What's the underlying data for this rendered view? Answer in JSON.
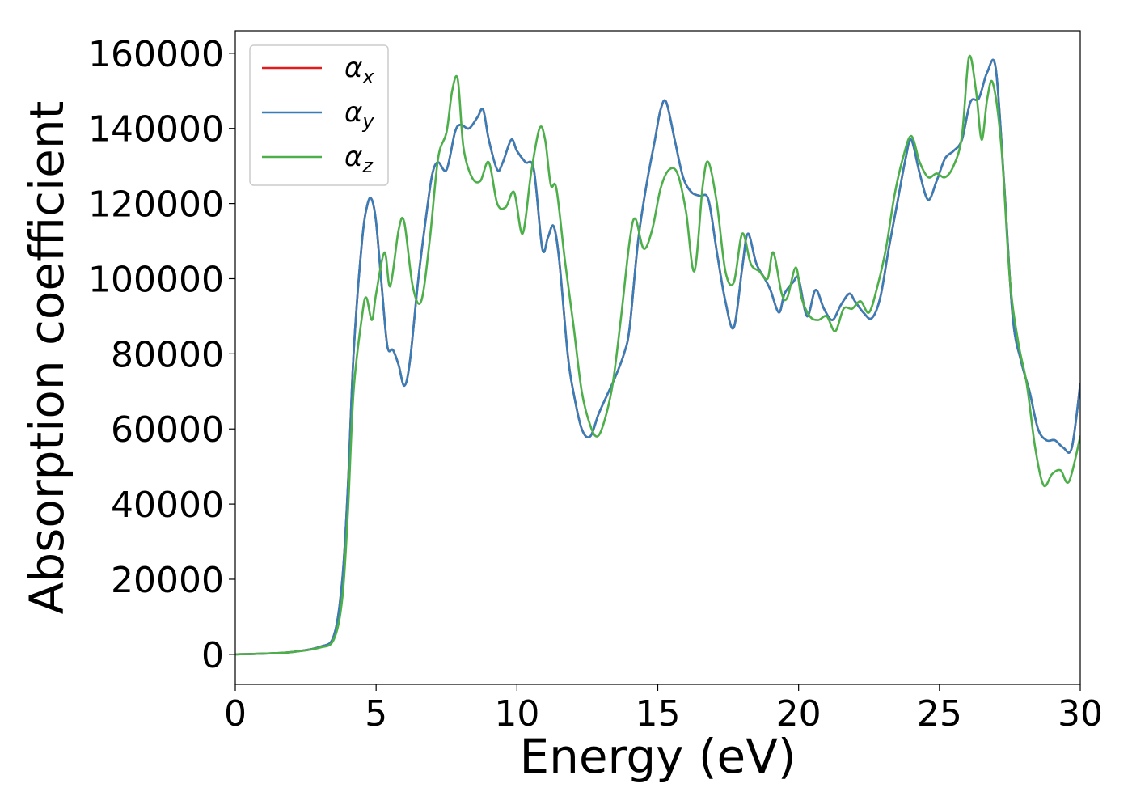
{
  "chart_data": {
    "type": "line",
    "title": "",
    "xlabel": "Energy (eV)",
    "ylabel": "Absorption coefficient",
    "xlim": [
      0,
      30
    ],
    "ylim": [
      -8000,
      166000
    ],
    "x_ticks": [
      0,
      5,
      10,
      15,
      20,
      25,
      30
    ],
    "y_ticks": [
      0,
      20000,
      40000,
      60000,
      80000,
      100000,
      120000,
      140000,
      160000
    ],
    "grid": false,
    "legend_position": "top-left",
    "series": [
      {
        "name": "α",
        "subscript": "x",
        "color": "#e41a1c",
        "x": [
          0,
          1,
          2,
          3,
          3.5,
          3.8,
          4.0,
          4.2,
          4.5,
          4.7,
          4.85,
          5.0,
          5.2,
          5.4,
          5.6,
          5.8,
          6.0,
          6.2,
          6.5,
          6.8,
          7.0,
          7.2,
          7.5,
          7.8,
          8.0,
          8.3,
          8.6,
          8.8,
          9.0,
          9.3,
          9.5,
          9.8,
          10.0,
          10.3,
          10.6,
          10.9,
          11.1,
          11.3,
          11.5,
          11.8,
          12.0,
          12.3,
          12.6,
          12.9,
          13.2,
          13.5,
          13.8,
          14.0,
          14.3,
          14.6,
          14.9,
          15.1,
          15.3,
          15.6,
          15.9,
          16.2,
          16.5,
          16.8,
          17.1,
          17.4,
          17.7,
          18.0,
          18.2,
          18.5,
          18.8,
          19.0,
          19.3,
          19.5,
          19.8,
          20.0,
          20.3,
          20.6,
          20.9,
          21.2,
          21.5,
          21.8,
          22.0,
          22.3,
          22.6,
          22.9,
          23.2,
          23.5,
          23.8,
          24.0,
          24.3,
          24.6,
          24.9,
          25.2,
          25.5,
          25.8,
          26.1,
          26.4,
          26.7,
          27.0,
          27.3,
          27.6,
          27.9,
          28.2,
          28.5,
          28.8,
          29.1,
          29.4,
          29.7,
          30.0
        ],
        "values": [
          0,
          200,
          600,
          2000,
          5000,
          20000,
          45000,
          80000,
          110000,
          120000,
          121000,
          115000,
          98000,
          82000,
          81000,
          77000,
          71500,
          78000,
          100000,
          118000,
          128000,
          131000,
          129000,
          139000,
          141000,
          140000,
          143000,
          145000,
          137000,
          129000,
          131000,
          137000,
          134000,
          131000,
          129000,
          108000,
          111000,
          114000,
          105000,
          80000,
          70000,
          60000,
          58000,
          64000,
          69000,
          74000,
          80000,
          87000,
          110000,
          125000,
          137000,
          145000,
          147000,
          137000,
          127000,
          123000,
          122000,
          121000,
          107000,
          94000,
          87000,
          103000,
          112000,
          104000,
          100000,
          97000,
          91000,
          96000,
          99000,
          100000,
          90000,
          97000,
          92000,
          89000,
          93000,
          96000,
          94000,
          91000,
          89500,
          95000,
          108000,
          120000,
          132000,
          137000,
          128000,
          121000,
          126000,
          132000,
          134000,
          137000,
          147000,
          148000,
          155000,
          156000,
          125000,
          90000,
          78000,
          70000,
          60000,
          57000,
          57000,
          55000,
          55000,
          72000
        ]
      },
      {
        "name": "α",
        "subscript": "y",
        "color": "#377eb8",
        "x": [
          0,
          1,
          2,
          3,
          3.5,
          3.8,
          4.0,
          4.2,
          4.5,
          4.7,
          4.85,
          5.0,
          5.2,
          5.4,
          5.6,
          5.8,
          6.0,
          6.2,
          6.5,
          6.8,
          7.0,
          7.2,
          7.5,
          7.8,
          8.0,
          8.3,
          8.6,
          8.8,
          9.0,
          9.3,
          9.5,
          9.8,
          10.0,
          10.3,
          10.6,
          10.9,
          11.1,
          11.3,
          11.5,
          11.8,
          12.0,
          12.3,
          12.6,
          12.9,
          13.2,
          13.5,
          13.8,
          14.0,
          14.3,
          14.6,
          14.9,
          15.1,
          15.3,
          15.6,
          15.9,
          16.2,
          16.5,
          16.8,
          17.1,
          17.4,
          17.7,
          18.0,
          18.2,
          18.5,
          18.8,
          19.0,
          19.3,
          19.5,
          19.8,
          20.0,
          20.3,
          20.6,
          20.9,
          21.2,
          21.5,
          21.8,
          22.0,
          22.3,
          22.6,
          22.9,
          23.2,
          23.5,
          23.8,
          24.0,
          24.3,
          24.6,
          24.9,
          25.2,
          25.5,
          25.8,
          26.1,
          26.4,
          26.7,
          27.0,
          27.3,
          27.6,
          27.9,
          28.2,
          28.5,
          28.8,
          29.1,
          29.4,
          29.7,
          30.0
        ],
        "values": [
          0,
          200,
          600,
          2000,
          5000,
          20000,
          45000,
          80000,
          110000,
          120000,
          121000,
          115000,
          98000,
          82000,
          81000,
          77000,
          71500,
          78000,
          100000,
          118000,
          128000,
          131000,
          129000,
          139000,
          141000,
          140000,
          143000,
          145000,
          137000,
          129000,
          131000,
          137000,
          134000,
          131000,
          129000,
          108000,
          111000,
          114000,
          105000,
          80000,
          70000,
          60000,
          58000,
          64000,
          69000,
          74000,
          80000,
          87000,
          110000,
          125000,
          137000,
          145000,
          147000,
          137000,
          127000,
          123000,
          122000,
          121000,
          107000,
          94000,
          87000,
          103000,
          112000,
          104000,
          100000,
          97000,
          91000,
          96000,
          99000,
          100000,
          90000,
          97000,
          92000,
          89000,
          93000,
          96000,
          94000,
          91000,
          89500,
          95000,
          108000,
          120000,
          132000,
          137000,
          128000,
          121000,
          126000,
          132000,
          134000,
          137000,
          147000,
          148000,
          155000,
          156000,
          125000,
          90000,
          78000,
          70000,
          60000,
          57000,
          57000,
          55000,
          55000,
          72000
        ]
      },
      {
        "name": "α",
        "subscript": "z",
        "color": "#4daf4a",
        "x": [
          0,
          1,
          2,
          3,
          3.5,
          3.8,
          4.0,
          4.2,
          4.5,
          4.65,
          4.85,
          5.0,
          5.3,
          5.5,
          5.8,
          6.0,
          6.3,
          6.6,
          6.9,
          7.2,
          7.5,
          7.7,
          7.9,
          8.1,
          8.4,
          8.7,
          9.0,
          9.3,
          9.6,
          9.9,
          10.2,
          10.5,
          10.8,
          11.0,
          11.2,
          11.4,
          11.7,
          12.0,
          12.3,
          12.6,
          12.85,
          13.1,
          13.4,
          13.7,
          14.0,
          14.2,
          14.5,
          14.8,
          15.1,
          15.4,
          15.7,
          16.0,
          16.3,
          16.6,
          16.8,
          17.1,
          17.4,
          17.7,
          18.0,
          18.3,
          18.6,
          18.9,
          19.1,
          19.4,
          19.6,
          19.9,
          20.1,
          20.4,
          20.7,
          21.0,
          21.3,
          21.6,
          21.9,
          22.2,
          22.5,
          22.8,
          23.1,
          23.4,
          23.7,
          24.0,
          24.3,
          24.6,
          24.9,
          25.2,
          25.5,
          25.8,
          26.05,
          26.3,
          26.5,
          26.7,
          26.9,
          27.2,
          27.5,
          27.8,
          28.1,
          28.4,
          28.7,
          29.0,
          29.3,
          29.6,
          30.0
        ],
        "values": [
          0,
          200,
          600,
          1800,
          4000,
          15000,
          38000,
          70000,
          90000,
          95000,
          89000,
          96000,
          107000,
          98000,
          113000,
          115000,
          98000,
          94000,
          110000,
          132000,
          139000,
          150000,
          153000,
          135000,
          127000,
          126000,
          131000,
          120000,
          119000,
          123000,
          112000,
          128000,
          140000,
          137000,
          125000,
          124000,
          105000,
          88000,
          70000,
          61000,
          58000,
          62000,
          72000,
          90000,
          110000,
          116000,
          108000,
          113000,
          124000,
          129000,
          128000,
          118000,
          102000,
          125000,
          131000,
          120000,
          102000,
          99000,
          112000,
          104000,
          102000,
          100000,
          107000,
          96000,
          95000,
          103000,
          95000,
          90000,
          89000,
          90000,
          86000,
          92000,
          92000,
          94000,
          91000,
          98000,
          108000,
          122000,
          132000,
          138000,
          131000,
          127000,
          128000,
          127000,
          130000,
          138000,
          159000,
          150000,
          137000,
          148000,
          152000,
          135000,
          100000,
          83000,
          72000,
          55000,
          45000,
          48000,
          49000,
          46000,
          58000
        ]
      }
    ]
  }
}
